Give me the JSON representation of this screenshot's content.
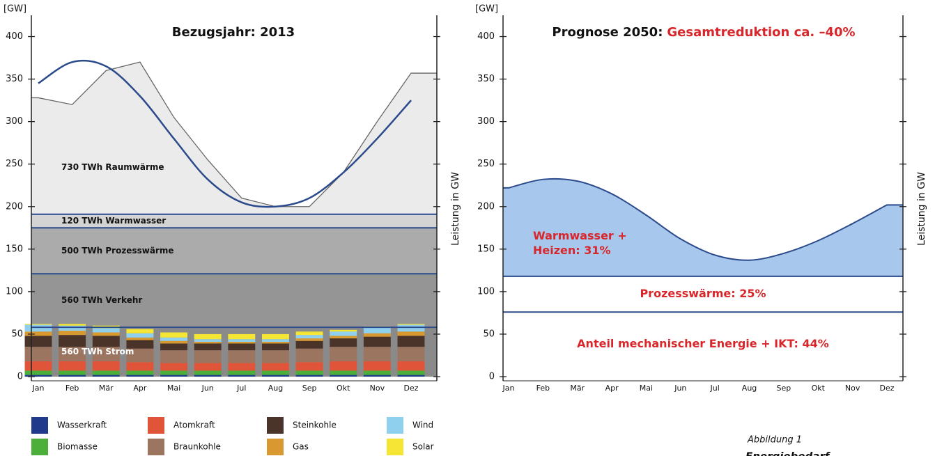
{
  "chart_data": [
    {
      "type": "combo",
      "title": "Bezugsjahr: 2013",
      "y_unit": "[GW]",
      "y2_label": "Leistung in GW",
      "categories": [
        "Jan",
        "Feb",
        "Mär",
        "Apr",
        "Mai",
        "Jun",
        "Jul",
        "Aug",
        "Sep",
        "Okt",
        "Nov",
        "Dez"
      ],
      "ylim": [
        0,
        425
      ],
      "yticks": [
        0,
        50,
        100,
        150,
        200,
        250,
        300,
        350,
        400
      ],
      "demand": [
        328,
        320,
        360,
        370,
        305,
        255,
        210,
        200,
        200,
        240,
        300,
        357
      ],
      "trend": [
        345,
        370,
        365,
        330,
        280,
        232,
        205,
        200,
        210,
        240,
        280,
        325
      ],
      "line_color": "#2b4a8b",
      "levels": [
        191,
        175,
        121,
        58
      ],
      "band_labels": [
        "730 TWh Raumwärme",
        "120 TWh Warmwasser",
        "500 TWh Prozesswärme",
        "560 TWh Verkehr",
        "560 TWh Strom"
      ],
      "series": [
        {
          "name": "Wasserkraft",
          "color": "#1f3a8a",
          "values": [
            2,
            2,
            2,
            2,
            2,
            2,
            2,
            2,
            2,
            2,
            2,
            2
          ]
        },
        {
          "name": "Biomasse",
          "color": "#4caf3a",
          "values": [
            5,
            5,
            5,
            5,
            5,
            5,
            5,
            5,
            5,
            5,
            5,
            5
          ]
        },
        {
          "name": "Atomkraft",
          "color": "#e0553a",
          "values": [
            11,
            11,
            11,
            10,
            9,
            9,
            9,
            9,
            10,
            11,
            11,
            11
          ]
        },
        {
          "name": "Braunkohle",
          "color": "#9b7560",
          "values": [
            17,
            17,
            17,
            16,
            15,
            15,
            15,
            15,
            16,
            17,
            17,
            17
          ]
        },
        {
          "name": "Steinkohle",
          "color": "#4a3328",
          "values": [
            13,
            14,
            13,
            10,
            8,
            8,
            8,
            8,
            9,
            10,
            12,
            13
          ]
        },
        {
          "name": "Gas",
          "color": "#d89a30",
          "values": [
            5,
            5,
            4,
            3,
            3,
            2,
            2,
            2,
            3,
            3,
            4,
            5
          ]
        },
        {
          "name": "Wind",
          "color": "#8fd0ee",
          "values": [
            8,
            6,
            5,
            5,
            4,
            3,
            3,
            3,
            4,
            5,
            7,
            8
          ]
        },
        {
          "name": "Solar",
          "color": "#f5e636",
          "values": [
            1,
            2,
            3,
            5,
            6,
            6,
            6,
            6,
            4,
            2,
            1,
            1
          ]
        }
      ]
    },
    {
      "type": "area",
      "title": "Prognose 2050:",
      "title_highlight": "Gesamtreduktion ca. –40%",
      "highlight_color": "#d8262b",
      "y_unit": "[GW]",
      "y2_label": "Leistung in GW",
      "categories": [
        "Jan",
        "Feb",
        "Mär",
        "Apr",
        "Mai",
        "Jun",
        "Jul",
        "Aug",
        "Sep",
        "Okt",
        "Nov",
        "Dez"
      ],
      "ylim": [
        0,
        425
      ],
      "yticks": [
        0,
        50,
        100,
        150,
        200,
        250,
        300,
        350,
        400
      ],
      "values": [
        222,
        232,
        230,
        215,
        190,
        162,
        143,
        137,
        145,
        160,
        180,
        202
      ],
      "color": "#a7c8ec",
      "line_color": "#2b4a8b",
      "levels": [
        118,
        76
      ],
      "band_labels": [
        [
          "Warmwasser +",
          "Heizen: 31%"
        ],
        [
          "Prozesswärme: 25%"
        ],
        [
          "Anteil mechanischer Energie + IKT: 44%"
        ]
      ]
    }
  ],
  "caption": [
    "Abbildung 1",
    "Energiebedarf"
  ]
}
